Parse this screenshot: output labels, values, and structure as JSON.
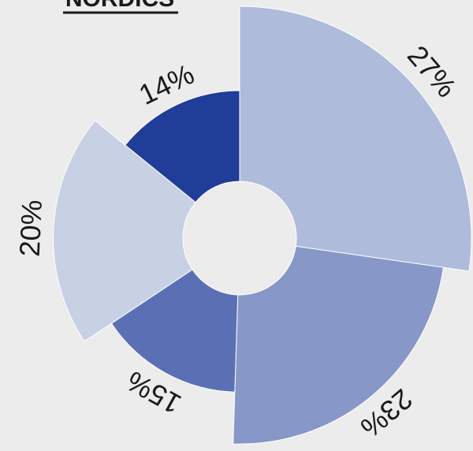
{
  "chart_data": {
    "type": "polar",
    "title": "NORDICS",
    "values": [
      27,
      23,
      15,
      20,
      14
    ],
    "value_labels": [
      "27%",
      "23%",
      "15%",
      "20%",
      "14%"
    ],
    "colors": [
      "#aebbda",
      "#8797c8",
      "#5b70b4",
      "#c8d0e4",
      "#203d98"
    ]
  }
}
